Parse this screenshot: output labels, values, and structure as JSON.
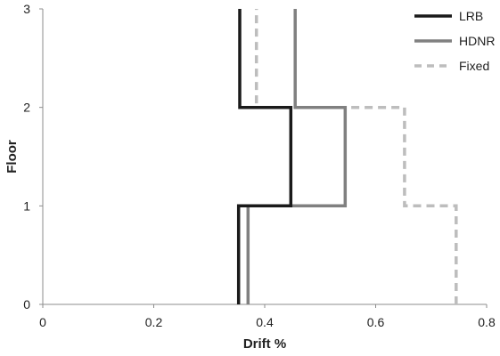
{
  "chart_data": {
    "type": "line",
    "title": "",
    "xlabel": "Drift %",
    "ylabel": "Floor",
    "xlim": [
      0,
      0.8
    ],
    "ylim": [
      0,
      3
    ],
    "xticks": [
      "0",
      "0.2",
      "0.4",
      "0.6",
      "0.8"
    ],
    "yticks": [
      "0",
      "1",
      "2",
      "3"
    ],
    "grid": false,
    "legend_position": "top-right",
    "series": [
      {
        "name": "LRB",
        "color": "#1a1a1a",
        "style": "solid",
        "x": [
          0.353,
          0.353,
          0.447,
          0.447,
          0.355,
          0.355
        ],
        "y": [
          0,
          1,
          1,
          2,
          2,
          3
        ]
      },
      {
        "name": "HDNR",
        "color": "#808080",
        "style": "solid",
        "x": [
          0.37,
          0.37,
          0.545,
          0.545,
          0.455,
          0.455
        ],
        "y": [
          0,
          1,
          1,
          2,
          2,
          3
        ]
      },
      {
        "name": "Fixed",
        "color": "#bdbdbd",
        "style": "dashed",
        "x": [
          0.745,
          0.745,
          0.652,
          0.652,
          0.385,
          0.385
        ],
        "y": [
          0,
          1,
          1,
          2,
          2,
          3
        ]
      }
    ]
  }
}
